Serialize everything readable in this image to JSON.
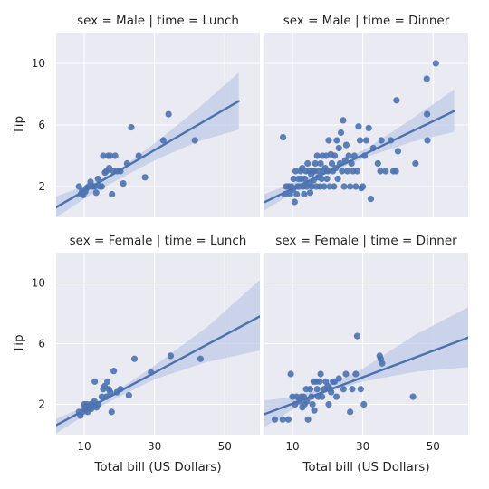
{
  "chart_data": {
    "type": "scatter",
    "fit": "linear regression with confidence band",
    "grid": true,
    "xlabel": "Total bill (US Dollars)",
    "ylabel": "Tip",
    "xlim": [
      2,
      60
    ],
    "ylim": [
      0,
      12
    ],
    "xticks": [
      "10",
      "30",
      "50"
    ],
    "yticks": [
      "2",
      "6",
      "10"
    ],
    "colors": {
      "point": "#4c72b0",
      "band": "#bfcbe7",
      "panel": "#eaeaf2",
      "grid": "#ffffff"
    },
    "panels": [
      {
        "title": "sex = Male | time = Lunch",
        "x_range": [
          2,
          54
        ],
        "line": [
          {
            "x": 2,
            "y": 0.65
          },
          {
            "x": 54,
            "y": 7.55
          }
        ],
        "band_top": [
          {
            "x": 2,
            "y": 1.35
          },
          {
            "x": 12,
            "y": 2.2
          },
          {
            "x": 20,
            "y": 3.1
          },
          {
            "x": 30,
            "y": 4.8
          },
          {
            "x": 42,
            "y": 7.0
          },
          {
            "x": 54,
            "y": 9.4
          }
        ],
        "band_bot": [
          {
            "x": 2,
            "y": 0.0
          },
          {
            "x": 12,
            "y": 1.5
          },
          {
            "x": 20,
            "y": 2.5
          },
          {
            "x": 30,
            "y": 3.7
          },
          {
            "x": 42,
            "y": 4.9
          },
          {
            "x": 54,
            "y": 5.7
          }
        ],
        "points": [
          {
            "x": 8.5,
            "y": 2.0
          },
          {
            "x": 9.0,
            "y": 1.5
          },
          {
            "x": 9.4,
            "y": 1.7
          },
          {
            "x": 9.7,
            "y": 1.45
          },
          {
            "x": 10.3,
            "y": 1.66
          },
          {
            "x": 10.7,
            "y": 1.9
          },
          {
            "x": 11.2,
            "y": 2.0
          },
          {
            "x": 11.8,
            "y": 2.3
          },
          {
            "x": 12.4,
            "y": 2.0
          },
          {
            "x": 13.0,
            "y": 2.0
          },
          {
            "x": 13.4,
            "y": 1.6
          },
          {
            "x": 13.9,
            "y": 2.5
          },
          {
            "x": 14.5,
            "y": 2.0
          },
          {
            "x": 15.0,
            "y": 2.0
          },
          {
            "x": 15.4,
            "y": 4.0
          },
          {
            "x": 15.9,
            "y": 2.9
          },
          {
            "x": 16.3,
            "y": 3.0
          },
          {
            "x": 16.8,
            "y": 4.0
          },
          {
            "x": 17.1,
            "y": 3.2
          },
          {
            "x": 17.4,
            "y": 4.0
          },
          {
            "x": 17.9,
            "y": 1.5
          },
          {
            "x": 18.3,
            "y": 3.0
          },
          {
            "x": 18.8,
            "y": 4.0
          },
          {
            "x": 19.4,
            "y": 3.0
          },
          {
            "x": 20.3,
            "y": 3.0
          },
          {
            "x": 21.1,
            "y": 2.2
          },
          {
            "x": 22.2,
            "y": 3.5
          },
          {
            "x": 23.4,
            "y": 5.85
          },
          {
            "x": 25.5,
            "y": 4.0
          },
          {
            "x": 27.3,
            "y": 2.6
          },
          {
            "x": 32.5,
            "y": 5.0
          },
          {
            "x": 34.0,
            "y": 6.7
          },
          {
            "x": 41.5,
            "y": 5.0
          }
        ]
      },
      {
        "title": "sex = Male | time = Dinner",
        "x_range": [
          2,
          56
        ],
        "line": [
          {
            "x": 2,
            "y": 0.98
          },
          {
            "x": 56,
            "y": 6.9
          }
        ],
        "band_top": [
          {
            "x": 2,
            "y": 1.5
          },
          {
            "x": 14,
            "y": 2.6
          },
          {
            "x": 22,
            "y": 3.4
          },
          {
            "x": 32,
            "y": 4.6
          },
          {
            "x": 44,
            "y": 6.4
          },
          {
            "x": 56,
            "y": 8.3
          }
        ],
        "band_bot": [
          {
            "x": 2,
            "y": 0.45
          },
          {
            "x": 14,
            "y": 2.15
          },
          {
            "x": 22,
            "y": 3.05
          },
          {
            "x": 32,
            "y": 4.0
          },
          {
            "x": 44,
            "y": 4.9
          },
          {
            "x": 56,
            "y": 5.55
          }
        ],
        "points": [
          {
            "x": 7.3,
            "y": 5.2
          },
          {
            "x": 7.8,
            "y": 1.5
          },
          {
            "x": 8.2,
            "y": 2.0
          },
          {
            "x": 8.9,
            "y": 2.0
          },
          {
            "x": 9.3,
            "y": 1.5
          },
          {
            "x": 9.7,
            "y": 2.0
          },
          {
            "x": 10.1,
            "y": 1.8
          },
          {
            "x": 10.3,
            "y": 2.5
          },
          {
            "x": 10.6,
            "y": 1.0
          },
          {
            "x": 10.9,
            "y": 3.0
          },
          {
            "x": 11.2,
            "y": 1.5
          },
          {
            "x": 11.4,
            "y": 2.0
          },
          {
            "x": 11.7,
            "y": 2.5
          },
          {
            "x": 12.0,
            "y": 2.0
          },
          {
            "x": 12.3,
            "y": 3.0
          },
          {
            "x": 12.5,
            "y": 2.5
          },
          {
            "x": 12.8,
            "y": 3.2
          },
          {
            "x": 13.1,
            "y": 2.0
          },
          {
            "x": 13.3,
            "y": 1.5
          },
          {
            "x": 13.5,
            "y": 2.5
          },
          {
            "x": 13.8,
            "y": 3.0
          },
          {
            "x": 14.1,
            "y": 2.0
          },
          {
            "x": 14.3,
            "y": 3.5
          },
          {
            "x": 14.6,
            "y": 2.2
          },
          {
            "x": 14.8,
            "y": 3.0
          },
          {
            "x": 15.0,
            "y": 1.6
          },
          {
            "x": 15.3,
            "y": 2.8
          },
          {
            "x": 15.5,
            "y": 2.0
          },
          {
            "x": 15.8,
            "y": 3.0
          },
          {
            "x": 16.0,
            "y": 2.4
          },
          {
            "x": 16.3,
            "y": 3.0
          },
          {
            "x": 16.5,
            "y": 3.5
          },
          {
            "x": 16.8,
            "y": 2.0
          },
          {
            "x": 17.0,
            "y": 4.0
          },
          {
            "x": 17.3,
            "y": 2.6
          },
          {
            "x": 17.5,
            "y": 3.0
          },
          {
            "x": 17.8,
            "y": 2.0
          },
          {
            "x": 18.0,
            "y": 3.5
          },
          {
            "x": 18.3,
            "y": 2.5
          },
          {
            "x": 18.5,
            "y": 4.0
          },
          {
            "x": 18.8,
            "y": 3.0
          },
          {
            "x": 19.0,
            "y": 2.0
          },
          {
            "x": 19.3,
            "y": 3.2
          },
          {
            "x": 19.6,
            "y": 4.0
          },
          {
            "x": 19.8,
            "y": 2.5
          },
          {
            "x": 20.1,
            "y": 3.0
          },
          {
            "x": 20.3,
            "y": 5.0
          },
          {
            "x": 20.6,
            "y": 2.0
          },
          {
            "x": 20.9,
            "y": 4.1
          },
          {
            "x": 21.2,
            "y": 3.5
          },
          {
            "x": 21.5,
            "y": 3.0
          },
          {
            "x": 21.8,
            "y": 2.0
          },
          {
            "x": 22.0,
            "y": 4.0
          },
          {
            "x": 22.3,
            "y": 3.2
          },
          {
            "x": 22.6,
            "y": 5.0
          },
          {
            "x": 22.9,
            "y": 2.5
          },
          {
            "x": 23.2,
            "y": 4.5
          },
          {
            "x": 23.5,
            "y": 3.5
          },
          {
            "x": 23.8,
            "y": 5.5
          },
          {
            "x": 24.1,
            "y": 3.0
          },
          {
            "x": 24.4,
            "y": 6.3
          },
          {
            "x": 24.7,
            "y": 2.0
          },
          {
            "x": 25.0,
            "y": 3.7
          },
          {
            "x": 25.3,
            "y": 4.7
          },
          {
            "x": 25.6,
            "y": 3.0
          },
          {
            "x": 26.0,
            "y": 4.0
          },
          {
            "x": 26.4,
            "y": 2.0
          },
          {
            "x": 26.8,
            "y": 3.5
          },
          {
            "x": 27.2,
            "y": 3.0
          },
          {
            "x": 27.6,
            "y": 4.0
          },
          {
            "x": 28.0,
            "y": 2.0
          },
          {
            "x": 28.4,
            "y": 3.0
          },
          {
            "x": 28.8,
            "y": 5.9
          },
          {
            "x": 29.2,
            "y": 5.0
          },
          {
            "x": 29.6,
            "y": 1.9
          },
          {
            "x": 30.0,
            "y": 2.0
          },
          {
            "x": 30.5,
            "y": 4.0
          },
          {
            "x": 31.0,
            "y": 5.0
          },
          {
            "x": 31.7,
            "y": 5.8
          },
          {
            "x": 32.3,
            "y": 1.2
          },
          {
            "x": 33.0,
            "y": 4.5
          },
          {
            "x": 34.3,
            "y": 3.5
          },
          {
            "x": 35.0,
            "y": 3.0
          },
          {
            "x": 35.3,
            "y": 5.0
          },
          {
            "x": 36.5,
            "y": 3.0
          },
          {
            "x": 38.0,
            "y": 5.0
          },
          {
            "x": 38.7,
            "y": 3.0
          },
          {
            "x": 39.4,
            "y": 3.0
          },
          {
            "x": 40.0,
            "y": 4.3
          },
          {
            "x": 39.6,
            "y": 7.6
          },
          {
            "x": 45.0,
            "y": 3.5
          },
          {
            "x": 48.2,
            "y": 9.0
          },
          {
            "x": 48.3,
            "y": 6.7
          },
          {
            "x": 48.4,
            "y": 5.0
          },
          {
            "x": 50.8,
            "y": 10.0
          }
        ]
      },
      {
        "title": "sex = Female | time = Lunch",
        "x_range": [
          2,
          60
        ],
        "line": [
          {
            "x": 2,
            "y": 0.62
          },
          {
            "x": 60,
            "y": 7.8
          }
        ],
        "band_top": [
          {
            "x": 2,
            "y": 1.05
          },
          {
            "x": 12,
            "y": 2.0
          },
          {
            "x": 20,
            "y": 3.0
          },
          {
            "x": 30,
            "y": 4.55
          },
          {
            "x": 45,
            "y": 7.1
          },
          {
            "x": 60,
            "y": 10.2
          }
        ],
        "band_bot": [
          {
            "x": 2,
            "y": 0.1
          },
          {
            "x": 12,
            "y": 1.55
          },
          {
            "x": 20,
            "y": 2.5
          },
          {
            "x": 30,
            "y": 3.65
          },
          {
            "x": 45,
            "y": 4.8
          },
          {
            "x": 60,
            "y": 5.55
          }
        ],
        "points": [
          {
            "x": 8.5,
            "y": 1.5
          },
          {
            "x": 8.9,
            "y": 1.25
          },
          {
            "x": 9.5,
            "y": 1.5
          },
          {
            "x": 10.0,
            "y": 2.0
          },
          {
            "x": 10.2,
            "y": 1.8
          },
          {
            "x": 10.5,
            "y": 1.65
          },
          {
            "x": 10.8,
            "y": 2.0
          },
          {
            "x": 11.0,
            "y": 1.5
          },
          {
            "x": 11.4,
            "y": 1.8
          },
          {
            "x": 11.8,
            "y": 2.0
          },
          {
            "x": 12.0,
            "y": 1.7
          },
          {
            "x": 12.5,
            "y": 2.0
          },
          {
            "x": 12.9,
            "y": 2.2
          },
          {
            "x": 13.0,
            "y": 3.5
          },
          {
            "x": 13.5,
            "y": 1.8
          },
          {
            "x": 14.0,
            "y": 2.0
          },
          {
            "x": 15.0,
            "y": 2.5
          },
          {
            "x": 15.4,
            "y": 3.0
          },
          {
            "x": 15.8,
            "y": 3.2
          },
          {
            "x": 16.3,
            "y": 2.5
          },
          {
            "x": 16.6,
            "y": 3.5
          },
          {
            "x": 17.0,
            "y": 3.0
          },
          {
            "x": 17.4,
            "y": 2.8
          },
          {
            "x": 17.8,
            "y": 1.5
          },
          {
            "x": 18.4,
            "y": 4.2
          },
          {
            "x": 19.3,
            "y": 2.8
          },
          {
            "x": 20.3,
            "y": 3.0
          },
          {
            "x": 22.7,
            "y": 2.6
          },
          {
            "x": 24.3,
            "y": 5.0
          },
          {
            "x": 29.0,
            "y": 4.1
          },
          {
            "x": 34.6,
            "y": 5.2
          },
          {
            "x": 43.1,
            "y": 5.0
          }
        ]
      },
      {
        "title": "sex = Female | time = Dinner",
        "x_range": [
          2,
          60
        ],
        "line": [
          {
            "x": 2,
            "y": 1.35
          },
          {
            "x": 60,
            "y": 6.4
          }
        ],
        "band_top": [
          {
            "x": 2,
            "y": 2.25
          },
          {
            "x": 12,
            "y": 2.55
          },
          {
            "x": 20,
            "y": 3.25
          },
          {
            "x": 30,
            "y": 4.35
          },
          {
            "x": 45,
            "y": 6.6
          },
          {
            "x": 60,
            "y": 8.4
          }
        ],
        "band_bot": [
          {
            "x": 2,
            "y": 0.5
          },
          {
            "x": 12,
            "y": 1.95
          },
          {
            "x": 20,
            "y": 2.8
          },
          {
            "x": 30,
            "y": 3.5
          },
          {
            "x": 45,
            "y": 4.15
          },
          {
            "x": 60,
            "y": 4.45
          }
        ],
        "points": [
          {
            "x": 5.0,
            "y": 1.0
          },
          {
            "x": 7.2,
            "y": 1.0
          },
          {
            "x": 8.8,
            "y": 1.0
          },
          {
            "x": 9.5,
            "y": 4.0
          },
          {
            "x": 10.0,
            "y": 2.5
          },
          {
            "x": 10.7,
            "y": 2.0
          },
          {
            "x": 11.2,
            "y": 2.5
          },
          {
            "x": 12.0,
            "y": 2.2
          },
          {
            "x": 12.5,
            "y": 2.5
          },
          {
            "x": 12.8,
            "y": 1.8
          },
          {
            "x": 13.2,
            "y": 2.5
          },
          {
            "x": 13.4,
            "y": 2.0
          },
          {
            "x": 13.9,
            "y": 3.0
          },
          {
            "x": 14.1,
            "y": 2.2
          },
          {
            "x": 14.4,
            "y": 1.0
          },
          {
            "x": 15.0,
            "y": 3.0
          },
          {
            "x": 15.4,
            "y": 2.5
          },
          {
            "x": 15.7,
            "y": 2.0
          },
          {
            "x": 16.0,
            "y": 3.5
          },
          {
            "x": 16.2,
            "y": 1.6
          },
          {
            "x": 16.8,
            "y": 3.5
          },
          {
            "x": 17.0,
            "y": 3.0
          },
          {
            "x": 17.3,
            "y": 2.5
          },
          {
            "x": 17.7,
            "y": 3.5
          },
          {
            "x": 18.0,
            "y": 4.0
          },
          {
            "x": 18.4,
            "y": 2.5
          },
          {
            "x": 19.0,
            "y": 3.0
          },
          {
            "x": 19.5,
            "y": 3.5
          },
          {
            "x": 20.0,
            "y": 3.2
          },
          {
            "x": 20.3,
            "y": 2.0
          },
          {
            "x": 20.7,
            "y": 3.0
          },
          {
            "x": 21.0,
            "y": 2.8
          },
          {
            "x": 21.5,
            "y": 3.5
          },
          {
            "x": 22.0,
            "y": 3.5
          },
          {
            "x": 22.5,
            "y": 2.5
          },
          {
            "x": 23.2,
            "y": 3.7
          },
          {
            "x": 24.5,
            "y": 3.0
          },
          {
            "x": 25.2,
            "y": 4.0
          },
          {
            "x": 26.4,
            "y": 1.5
          },
          {
            "x": 27.0,
            "y": 3.0
          },
          {
            "x": 28.0,
            "y": 4.0
          },
          {
            "x": 28.4,
            "y": 6.5
          },
          {
            "x": 29.4,
            "y": 3.0
          },
          {
            "x": 30.3,
            "y": 2.0
          },
          {
            "x": 34.8,
            "y": 5.2
          },
          {
            "x": 35.5,
            "y": 4.7
          },
          {
            "x": 35.1,
            "y": 5.0
          },
          {
            "x": 44.3,
            "y": 2.5
          }
        ]
      }
    ]
  }
}
